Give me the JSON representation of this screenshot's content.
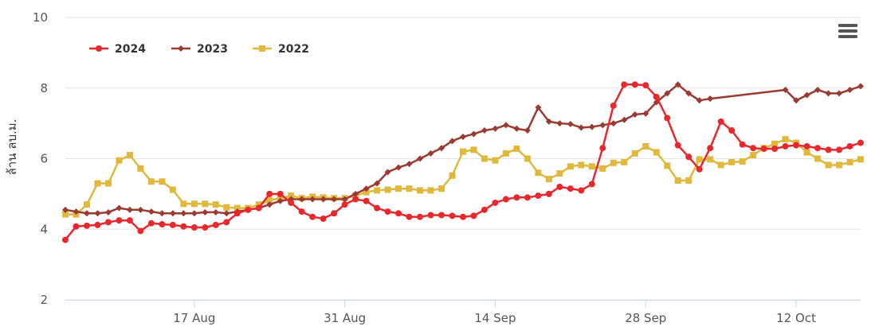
{
  "chart_data": {
    "type": "line",
    "title": "",
    "ylabel": "ล้าน ลบ.ม.",
    "xlabel": "",
    "ylim": [
      2,
      10
    ],
    "yticks": [
      2,
      4,
      6,
      8,
      10
    ],
    "x_range": [
      "2024-08-05",
      "2024-10-18"
    ],
    "xticks": [
      {
        "date": "2024-08-17",
        "label": "17 Aug"
      },
      {
        "date": "2024-08-31",
        "label": "31 Aug"
      },
      {
        "date": "2024-09-14",
        "label": "14 Sep"
      },
      {
        "date": "2024-09-28",
        "label": "28 Sep"
      },
      {
        "date": "2024-10-12",
        "label": "12 Oct"
      }
    ],
    "grid": "horizontal",
    "legend_position": "top-left",
    "menu_icon": "hamburger-icon",
    "series": [
      {
        "name": "2024",
        "color": "#e8282d",
        "marker": "circle",
        "points": [
          [
            "2024-08-05",
            3.7
          ],
          [
            "2024-08-06",
            4.08
          ],
          [
            "2024-08-07",
            4.1
          ],
          [
            "2024-08-08",
            4.12
          ],
          [
            "2024-08-09",
            4.2
          ],
          [
            "2024-08-10",
            4.25
          ],
          [
            "2024-08-11",
            4.25
          ],
          [
            "2024-08-12",
            3.95
          ],
          [
            "2024-08-13",
            4.17
          ],
          [
            "2024-08-14",
            4.14
          ],
          [
            "2024-08-15",
            4.12
          ],
          [
            "2024-08-16",
            4.08
          ],
          [
            "2024-08-17",
            4.05
          ],
          [
            "2024-08-18",
            4.05
          ],
          [
            "2024-08-19",
            4.12
          ],
          [
            "2024-08-20",
            4.2
          ],
          [
            "2024-08-21",
            4.45
          ],
          [
            "2024-08-22",
            4.55
          ],
          [
            "2024-08-23",
            4.6
          ],
          [
            "2024-08-24",
            5.0
          ],
          [
            "2024-08-25",
            5.0
          ],
          [
            "2024-08-26",
            4.75
          ],
          [
            "2024-08-27",
            4.5
          ],
          [
            "2024-08-28",
            4.35
          ],
          [
            "2024-08-29",
            4.3
          ],
          [
            "2024-08-30",
            4.45
          ],
          [
            "2024-08-31",
            4.7
          ],
          [
            "2024-09-01",
            4.85
          ],
          [
            "2024-09-02",
            4.8
          ],
          [
            "2024-09-03",
            4.6
          ],
          [
            "2024-09-04",
            4.5
          ],
          [
            "2024-09-05",
            4.45
          ],
          [
            "2024-09-06",
            4.35
          ],
          [
            "2024-09-07",
            4.35
          ],
          [
            "2024-09-08",
            4.4
          ],
          [
            "2024-09-09",
            4.4
          ],
          [
            "2024-09-10",
            4.38
          ],
          [
            "2024-09-11",
            4.35
          ],
          [
            "2024-09-12",
            4.38
          ],
          [
            "2024-09-13",
            4.55
          ],
          [
            "2024-09-14",
            4.75
          ],
          [
            "2024-09-15",
            4.85
          ],
          [
            "2024-09-16",
            4.9
          ],
          [
            "2024-09-17",
            4.9
          ],
          [
            "2024-09-18",
            4.95
          ],
          [
            "2024-09-19",
            5.0
          ],
          [
            "2024-09-20",
            5.2
          ],
          [
            "2024-09-21",
            5.15
          ],
          [
            "2024-09-22",
            5.1
          ],
          [
            "2024-09-23",
            5.28
          ],
          [
            "2024-09-24",
            6.3
          ],
          [
            "2024-09-25",
            7.5
          ],
          [
            "2024-09-26",
            8.1
          ],
          [
            "2024-09-27",
            8.1
          ],
          [
            "2024-09-28",
            8.08
          ],
          [
            "2024-09-29",
            7.75
          ],
          [
            "2024-09-30",
            7.15
          ],
          [
            "2024-10-01",
            6.38
          ],
          [
            "2024-10-02",
            6.05
          ],
          [
            "2024-10-03",
            5.7
          ],
          [
            "2024-10-04",
            6.3
          ],
          [
            "2024-10-05",
            7.05
          ],
          [
            "2024-10-06",
            6.8
          ],
          [
            "2024-10-07",
            6.4
          ],
          [
            "2024-10-08",
            6.3
          ],
          [
            "2024-10-09",
            6.28
          ],
          [
            "2024-10-10",
            6.28
          ],
          [
            "2024-10-11",
            6.35
          ],
          [
            "2024-10-12",
            6.38
          ],
          [
            "2024-10-13",
            6.35
          ],
          [
            "2024-10-14",
            6.3
          ],
          [
            "2024-10-15",
            6.25
          ],
          [
            "2024-10-16",
            6.25
          ],
          [
            "2024-10-17",
            6.35
          ],
          [
            "2024-10-18",
            6.45
          ]
        ]
      },
      {
        "name": "2023",
        "color": "#9b3a30",
        "marker": "diamond",
        "points": [
          [
            "2024-08-05",
            4.55
          ],
          [
            "2024-08-06",
            4.5
          ],
          [
            "2024-08-07",
            4.45
          ],
          [
            "2024-08-08",
            4.45
          ],
          [
            "2024-08-09",
            4.48
          ],
          [
            "2024-08-10",
            4.6
          ],
          [
            "2024-08-11",
            4.55
          ],
          [
            "2024-08-12",
            4.55
          ],
          [
            "2024-08-13",
            4.5
          ],
          [
            "2024-08-14",
            4.45
          ],
          [
            "2024-08-15",
            4.45
          ],
          [
            "2024-08-16",
            4.45
          ],
          [
            "2024-08-17",
            4.45
          ],
          [
            "2024-08-18",
            4.48
          ],
          [
            "2024-08-19",
            4.48
          ],
          [
            "2024-08-20",
            4.45
          ],
          [
            "2024-08-21",
            4.5
          ],
          [
            "2024-08-22",
            4.55
          ],
          [
            "2024-08-23",
            4.6
          ],
          [
            "2024-08-24",
            4.7
          ],
          [
            "2024-08-25",
            4.8
          ],
          [
            "2024-08-26",
            4.85
          ],
          [
            "2024-08-27",
            4.85
          ],
          [
            "2024-08-28",
            4.85
          ],
          [
            "2024-08-29",
            4.85
          ],
          [
            "2024-08-30",
            4.85
          ],
          [
            "2024-08-31",
            4.85
          ],
          [
            "2024-09-01",
            5.0
          ],
          [
            "2024-09-02",
            5.15
          ],
          [
            "2024-09-03",
            5.3
          ],
          [
            "2024-09-04",
            5.62
          ],
          [
            "2024-09-05",
            5.75
          ],
          [
            "2024-09-06",
            5.85
          ],
          [
            "2024-09-07",
            6.0
          ],
          [
            "2024-09-08",
            6.15
          ],
          [
            "2024-09-09",
            6.3
          ],
          [
            "2024-09-10",
            6.5
          ],
          [
            "2024-09-11",
            6.62
          ],
          [
            "2024-09-12",
            6.7
          ],
          [
            "2024-09-13",
            6.8
          ],
          [
            "2024-09-14",
            6.85
          ],
          [
            "2024-09-15",
            6.95
          ],
          [
            "2024-09-16",
            6.85
          ],
          [
            "2024-09-17",
            6.8
          ],
          [
            "2024-09-18",
            7.45
          ],
          [
            "2024-09-19",
            7.05
          ],
          [
            "2024-09-20",
            7.0
          ],
          [
            "2024-09-21",
            6.98
          ],
          [
            "2024-09-22",
            6.88
          ],
          [
            "2024-09-23",
            6.9
          ],
          [
            "2024-09-24",
            6.95
          ],
          [
            "2024-09-25",
            7.0
          ],
          [
            "2024-09-26",
            7.1
          ],
          [
            "2024-09-27",
            7.25
          ],
          [
            "2024-09-28",
            7.28
          ],
          [
            "2024-09-29",
            7.6
          ],
          [
            "2024-09-30",
            7.85
          ],
          [
            "2024-10-01",
            8.1
          ],
          [
            "2024-10-02",
            7.85
          ],
          [
            "2024-10-03",
            7.65
          ],
          [
            "2024-10-04",
            7.7
          ],
          [
            "2024-10-11",
            7.95
          ],
          [
            "2024-10-12",
            7.65
          ],
          [
            "2024-10-13",
            7.8
          ],
          [
            "2024-10-14",
            7.95
          ],
          [
            "2024-10-15",
            7.85
          ],
          [
            "2024-10-16",
            7.85
          ],
          [
            "2024-10-17",
            7.95
          ],
          [
            "2024-10-18",
            8.05
          ]
        ]
      },
      {
        "name": "2022",
        "color": "#e0b83c",
        "marker": "square",
        "points": [
          [
            "2024-08-05",
            4.42
          ],
          [
            "2024-08-06",
            4.42
          ],
          [
            "2024-08-07",
            4.7
          ],
          [
            "2024-08-08",
            5.3
          ],
          [
            "2024-08-09",
            5.3
          ],
          [
            "2024-08-10",
            5.95
          ],
          [
            "2024-08-11",
            6.1
          ],
          [
            "2024-08-12",
            5.72
          ],
          [
            "2024-08-13",
            5.35
          ],
          [
            "2024-08-14",
            5.35
          ],
          [
            "2024-08-15",
            5.12
          ],
          [
            "2024-08-16",
            4.72
          ],
          [
            "2024-08-17",
            4.72
          ],
          [
            "2024-08-18",
            4.72
          ],
          [
            "2024-08-19",
            4.7
          ],
          [
            "2024-08-20",
            4.62
          ],
          [
            "2024-08-21",
            4.6
          ],
          [
            "2024-08-22",
            4.6
          ],
          [
            "2024-08-23",
            4.7
          ],
          [
            "2024-08-24",
            4.82
          ],
          [
            "2024-08-25",
            4.88
          ],
          [
            "2024-08-26",
            4.95
          ],
          [
            "2024-08-27",
            4.88
          ],
          [
            "2024-08-28",
            4.92
          ],
          [
            "2024-08-29",
            4.9
          ],
          [
            "2024-08-30",
            4.88
          ],
          [
            "2024-08-31",
            4.88
          ],
          [
            "2024-09-01",
            4.95
          ],
          [
            "2024-09-02",
            5.05
          ],
          [
            "2024-09-03",
            5.1
          ],
          [
            "2024-09-04",
            5.12
          ],
          [
            "2024-09-05",
            5.15
          ],
          [
            "2024-09-06",
            5.15
          ],
          [
            "2024-09-07",
            5.1
          ],
          [
            "2024-09-08",
            5.1
          ],
          [
            "2024-09-09",
            5.15
          ],
          [
            "2024-09-10",
            5.52
          ],
          [
            "2024-09-11",
            6.2
          ],
          [
            "2024-09-12",
            6.25
          ],
          [
            "2024-09-13",
            6.0
          ],
          [
            "2024-09-14",
            5.95
          ],
          [
            "2024-09-15",
            6.15
          ],
          [
            "2024-09-16",
            6.28
          ],
          [
            "2024-09-17",
            6.0
          ],
          [
            "2024-09-18",
            5.6
          ],
          [
            "2024-09-19",
            5.42
          ],
          [
            "2024-09-20",
            5.58
          ],
          [
            "2024-09-21",
            5.78
          ],
          [
            "2024-09-22",
            5.82
          ],
          [
            "2024-09-23",
            5.78
          ],
          [
            "2024-09-24",
            5.72
          ],
          [
            "2024-09-25",
            5.88
          ],
          [
            "2024-09-26",
            5.9
          ],
          [
            "2024-09-27",
            6.15
          ],
          [
            "2024-09-28",
            6.35
          ],
          [
            "2024-09-29",
            6.18
          ],
          [
            "2024-09-30",
            5.8
          ],
          [
            "2024-10-01",
            5.38
          ],
          [
            "2024-10-02",
            5.38
          ],
          [
            "2024-10-03",
            5.98
          ],
          [
            "2024-10-04",
            5.98
          ],
          [
            "2024-10-05",
            5.82
          ],
          [
            "2024-10-06",
            5.9
          ],
          [
            "2024-10-07",
            5.92
          ],
          [
            "2024-10-08",
            6.1
          ],
          [
            "2024-10-09",
            6.3
          ],
          [
            "2024-10-10",
            6.42
          ],
          [
            "2024-10-11",
            6.55
          ],
          [
            "2024-10-12",
            6.45
          ],
          [
            "2024-10-13",
            6.18
          ],
          [
            "2024-10-14",
            6.0
          ],
          [
            "2024-10-15",
            5.82
          ],
          [
            "2024-10-16",
            5.82
          ],
          [
            "2024-10-17",
            5.9
          ],
          [
            "2024-10-18",
            5.98
          ]
        ]
      }
    ]
  }
}
